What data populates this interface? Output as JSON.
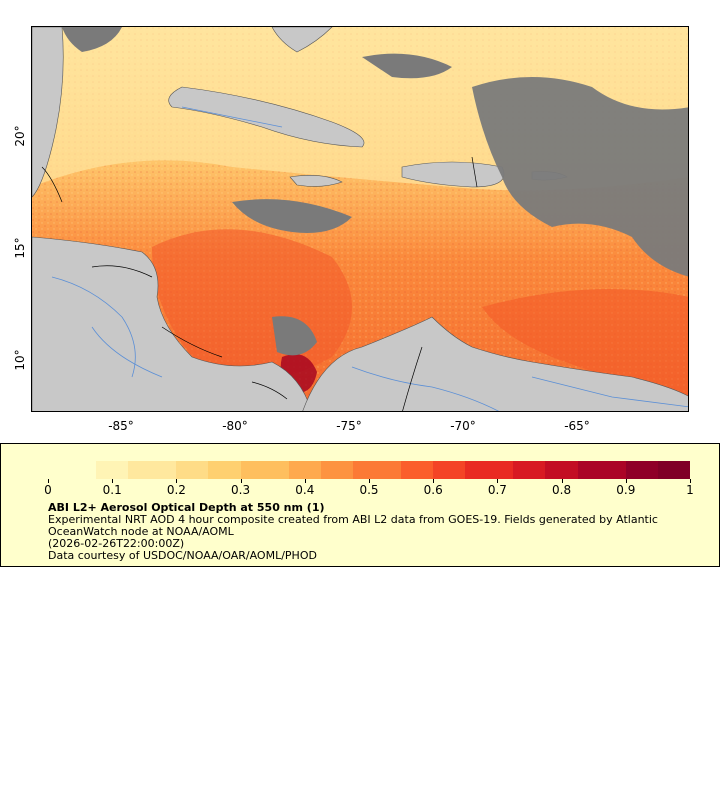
{
  "map": {
    "x_ticks": [
      "-85°",
      "-80°",
      "-75°",
      "-70°",
      "-65°"
    ],
    "y_ticks": [
      "20°",
      "15°",
      "10°"
    ],
    "lon_range": [
      -88.9,
      -59.8
    ],
    "lat_range": [
      8.0,
      24.9
    ],
    "land_color": "#c8c8c8",
    "cloud_color": "#7a7a7a",
    "river_color": "#5b8fd6",
    "border_color": "#000000"
  },
  "legend": {
    "colorbar_ticks": [
      "0",
      "0.1",
      "0.2",
      "0.3",
      "0.4",
      "0.5",
      "0.6",
      "0.7",
      "0.8",
      "0.9",
      "1"
    ],
    "colors": [
      "#ffffcc",
      "#fff4b5",
      "#ffe89e",
      "#fedc87",
      "#fed070",
      "#febf5e",
      "#fea94e",
      "#fd9340",
      "#fc7a35",
      "#fb5e2b",
      "#f44426",
      "#e92b22",
      "#d81a22",
      "#c30d23",
      "#ab0426",
      "#8f0028",
      "#800026"
    ],
    "title": "ABI L2+ Aerosol Optical Depth at 550 nm (1)",
    "line1": "Experimental NRT AOD 4 hour composite created from ABI L2 data from GOES-19. Fields generated by Atlantic",
    "line2": "OceanWatch node at NOAA/AOML",
    "line3": "(2026-02-26T22:00:00Z)",
    "line4": "Data courtesy of USDOC/NOAA/OAR/AOML/PHOD"
  }
}
